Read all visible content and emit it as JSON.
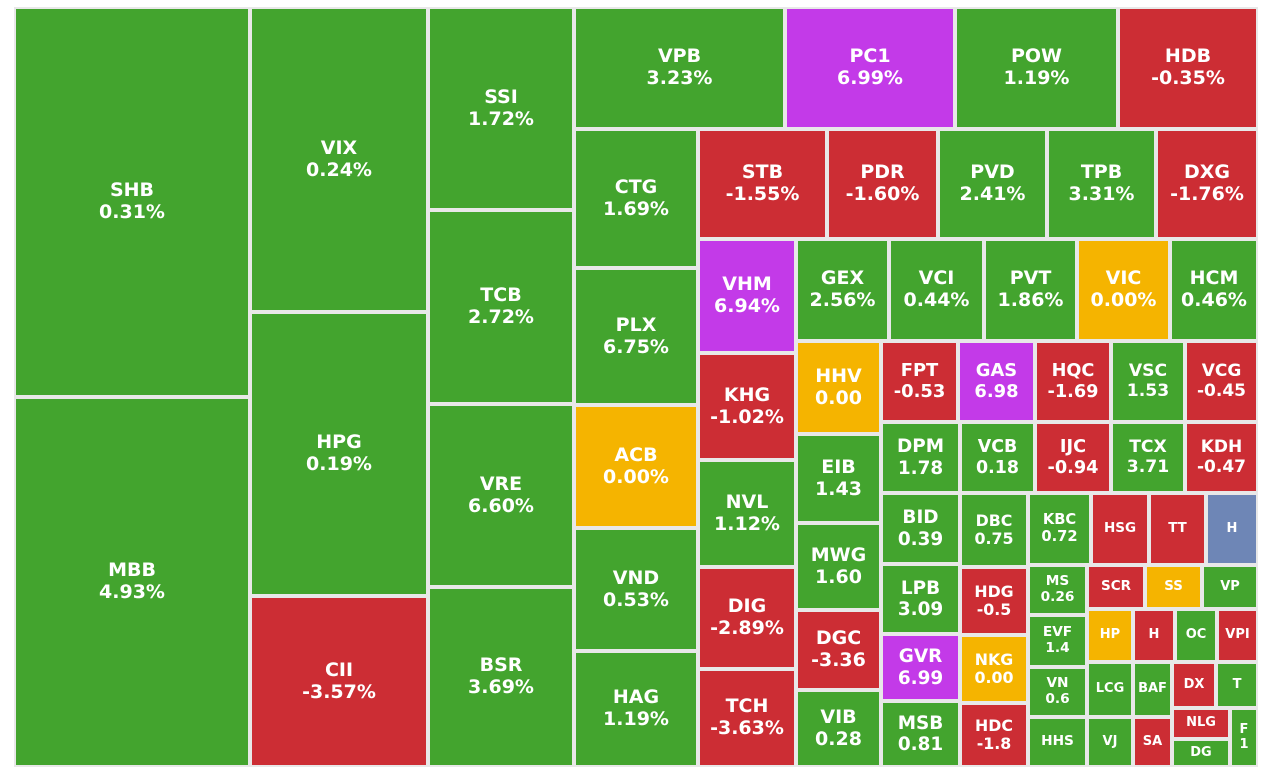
{
  "chart_data": {
    "type": "treemap",
    "colors": {
      "up": "#43a42e",
      "down": "#cc2d34",
      "flat": "#f5b400",
      "ceiling": "#c33ae8",
      "floor": "#6e86b6",
      "border": "#e8e8e8"
    },
    "tiles": [
      {
        "ticker": "SHB",
        "change": "0.31%",
        "status": "up"
      },
      {
        "ticker": "MBB",
        "change": "4.93%",
        "status": "up"
      },
      {
        "ticker": "VIX",
        "change": "0.24%",
        "status": "up"
      },
      {
        "ticker": "HPG",
        "change": "0.19%",
        "status": "up"
      },
      {
        "ticker": "CII",
        "change": "-3.57%",
        "status": "down"
      },
      {
        "ticker": "SSI",
        "change": "1.72%",
        "status": "up"
      },
      {
        "ticker": "TCB",
        "change": "2.72%",
        "status": "up"
      },
      {
        "ticker": "VRE",
        "change": "6.60%",
        "status": "up"
      },
      {
        "ticker": "BSR",
        "change": "3.69%",
        "status": "up"
      },
      {
        "ticker": "VPB",
        "change": "3.23%",
        "status": "up"
      },
      {
        "ticker": "PC1",
        "change": "6.99%",
        "status": "ceiling"
      },
      {
        "ticker": "POW",
        "change": "1.19%",
        "status": "up"
      },
      {
        "ticker": "HDB",
        "change": "-0.35%",
        "status": "down"
      },
      {
        "ticker": "CTG",
        "change": "1.69%",
        "status": "up"
      },
      {
        "ticker": "PLX",
        "change": "6.75%",
        "status": "up"
      },
      {
        "ticker": "ACB",
        "change": "0.00%",
        "status": "flat"
      },
      {
        "ticker": "VND",
        "change": "0.53%",
        "status": "up"
      },
      {
        "ticker": "HAG",
        "change": "1.19%",
        "status": "up"
      },
      {
        "ticker": "STB",
        "change": "-1.55%",
        "status": "down"
      },
      {
        "ticker": "PDR",
        "change": "-1.60%",
        "status": "down"
      },
      {
        "ticker": "PVD",
        "change": "2.41%",
        "status": "up"
      },
      {
        "ticker": "TPB",
        "change": "3.31%",
        "status": "up"
      },
      {
        "ticker": "DXG",
        "change": "-1.76%",
        "status": "down"
      },
      {
        "ticker": "VHM",
        "change": "6.94%",
        "status": "ceiling"
      },
      {
        "ticker": "GEX",
        "change": "2.56%",
        "status": "up"
      },
      {
        "ticker": "VCI",
        "change": "0.44%",
        "status": "up"
      },
      {
        "ticker": "PVT",
        "change": "1.86%",
        "status": "up"
      },
      {
        "ticker": "VIC",
        "change": "0.00%",
        "status": "flat"
      },
      {
        "ticker": "HCM",
        "change": "0.46%",
        "status": "up"
      },
      {
        "ticker": "KHG",
        "change": "-1.02%",
        "status": "down"
      },
      {
        "ticker": "NVL",
        "change": "1.12%",
        "status": "up"
      },
      {
        "ticker": "DIG",
        "change": "-2.89%",
        "status": "down"
      },
      {
        "ticker": "TCH",
        "change": "-3.63%",
        "status": "down"
      },
      {
        "ticker": "HHV",
        "change": "0.00",
        "status": "flat"
      },
      {
        "ticker": "EIB",
        "change": "1.43",
        "status": "up"
      },
      {
        "ticker": "MWG",
        "change": "1.60",
        "status": "up"
      },
      {
        "ticker": "DGC",
        "change": "-3.36",
        "status": "down"
      },
      {
        "ticker": "VIB",
        "change": "0.28",
        "status": "up"
      },
      {
        "ticker": "FPT",
        "change": "-0.53",
        "status": "down"
      },
      {
        "ticker": "GAS",
        "change": "6.98",
        "status": "ceiling"
      },
      {
        "ticker": "HQC",
        "change": "-1.69",
        "status": "down"
      },
      {
        "ticker": "VSC",
        "change": "1.53",
        "status": "up"
      },
      {
        "ticker": "VCG",
        "change": "-0.45",
        "status": "down"
      },
      {
        "ticker": "DPM",
        "change": "1.78",
        "status": "up"
      },
      {
        "ticker": "VCB",
        "change": "0.18",
        "status": "up"
      },
      {
        "ticker": "IJC",
        "change": "-0.94",
        "status": "down"
      },
      {
        "ticker": "TCX",
        "change": "3.71",
        "status": "up"
      },
      {
        "ticker": "KDH",
        "change": "-0.47",
        "status": "down"
      },
      {
        "ticker": "BID",
        "change": "0.39",
        "status": "up"
      },
      {
        "ticker": "LPB",
        "change": "3.09",
        "status": "up"
      },
      {
        "ticker": "GVR",
        "change": "6.99",
        "status": "ceiling"
      },
      {
        "ticker": "MSB",
        "change": "0.81",
        "status": "up"
      },
      {
        "ticker": "DBC",
        "change": "0.75",
        "status": "up"
      },
      {
        "ticker": "HDG",
        "change": "-0.5",
        "status": "down"
      },
      {
        "ticker": "NKG",
        "change": "0.00",
        "status": "flat"
      },
      {
        "ticker": "HDC",
        "change": "-1.8",
        "status": "down"
      },
      {
        "ticker": "KBC",
        "change": "0.72",
        "status": "up"
      },
      {
        "ticker": "MS",
        "change": "0.26",
        "status": "up"
      },
      {
        "ticker": "EVF",
        "change": "1.4",
        "status": "up"
      },
      {
        "ticker": "VN",
        "change": "0.6",
        "status": "up"
      },
      {
        "ticker": "HHS",
        "change": "",
        "status": "up"
      },
      {
        "ticker": "HSG",
        "change": "",
        "status": "down"
      },
      {
        "ticker": "SCR",
        "change": "",
        "status": "down"
      },
      {
        "ticker": "HP",
        "change": "",
        "status": "flat"
      },
      {
        "ticker": "LCG",
        "change": "",
        "status": "up"
      },
      {
        "ticker": "VJ",
        "change": "",
        "status": "up"
      },
      {
        "ticker": "TT",
        "change": "",
        "status": "down"
      },
      {
        "ticker": "SS",
        "change": "",
        "status": "flat"
      },
      {
        "ticker": "H",
        "change": "",
        "status": "down"
      },
      {
        "ticker": "BAF",
        "change": "",
        "status": "up"
      },
      {
        "ticker": "SA",
        "change": "",
        "status": "down"
      },
      {
        "ticker": "H",
        "change": "",
        "status": "floor"
      },
      {
        "ticker": "VP",
        "change": "",
        "status": "up"
      },
      {
        "ticker": "OC",
        "change": "",
        "status": "up"
      },
      {
        "ticker": "VPI",
        "change": "",
        "status": "down"
      },
      {
        "ticker": "DX",
        "change": "",
        "status": "down"
      },
      {
        "ticker": "T",
        "change": "",
        "status": "up"
      },
      {
        "ticker": "NLG",
        "change": "",
        "status": "down"
      },
      {
        "ticker": "DG",
        "change": "",
        "status": "up"
      },
      {
        "ticker": "F",
        "change": "1",
        "status": "up"
      }
    ]
  }
}
